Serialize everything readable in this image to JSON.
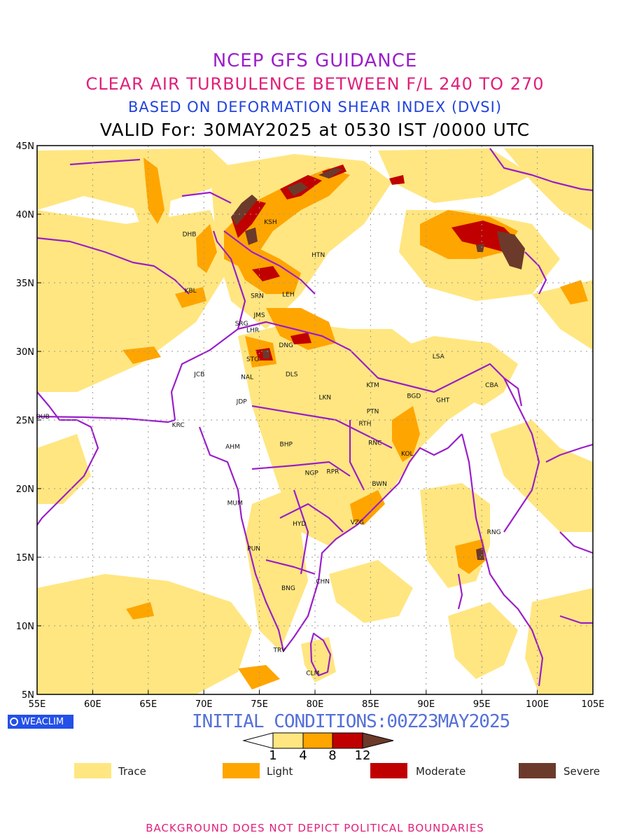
{
  "titles": {
    "line1": "NCEP GFS GUIDANCE",
    "line2": "CLEAR AIR TURBULENCE BETWEEN F/L 240 TO 270",
    "line3": "BASED ON DEFORMATION SHEAR INDEX (DVSI)",
    "line4": "VALID For: 30MAY2025 at 0530 IST /0000 UTC"
  },
  "map": {
    "lon_range": [
      55,
      105
    ],
    "lat_range": [
      5,
      45
    ],
    "grid": true,
    "lon_ticks": [
      "55E",
      "60E",
      "65E",
      "70E",
      "75E",
      "80E",
      "85E",
      "90E",
      "95E",
      "100E",
      "105E"
    ],
    "lat_ticks": [
      "45N",
      "40N",
      "35N",
      "30N",
      "25N",
      "20N",
      "15N",
      "10N",
      "5N"
    ],
    "cities": [
      {
        "code": "KSH",
        "lon": 76.0,
        "lat": 39.5
      },
      {
        "code": "DHB",
        "lon": 68.7,
        "lat": 38.6
      },
      {
        "code": "HTN",
        "lon": 80.3,
        "lat": 37.1
      },
      {
        "code": "KBL",
        "lon": 68.8,
        "lat": 34.5
      },
      {
        "code": "SRN",
        "lon": 74.8,
        "lat": 34.1
      },
      {
        "code": "LEH",
        "lon": 77.6,
        "lat": 34.2
      },
      {
        "code": "JMS",
        "lon": 75.0,
        "lat": 32.7
      },
      {
        "code": "SRG",
        "lon": 73.4,
        "lat": 32.1
      },
      {
        "code": "LHR",
        "lon": 74.4,
        "lat": 31.6
      },
      {
        "code": "DNG",
        "lon": 77.4,
        "lat": 30.5
      },
      {
        "code": "STG",
        "lon": 74.4,
        "lat": 29.5
      },
      {
        "code": "LSA",
        "lon": 91.1,
        "lat": 29.7
      },
      {
        "code": "JCB",
        "lon": 69.6,
        "lat": 28.4
      },
      {
        "code": "NAL",
        "lon": 73.9,
        "lat": 28.2
      },
      {
        "code": "DLS",
        "lon": 77.9,
        "lat": 28.4
      },
      {
        "code": "KTM",
        "lon": 85.2,
        "lat": 27.6
      },
      {
        "code": "BGD",
        "lon": 88.9,
        "lat": 26.8
      },
      {
        "code": "CBA",
        "lon": 95.9,
        "lat": 27.6
      },
      {
        "code": "GHT",
        "lon": 91.5,
        "lat": 26.5
      },
      {
        "code": "JDP",
        "lon": 73.4,
        "lat": 26.4
      },
      {
        "code": "LKN",
        "lon": 80.9,
        "lat": 26.7
      },
      {
        "code": "DUB",
        "lon": 55.5,
        "lat": 25.3
      },
      {
        "code": "PTN",
        "lon": 85.2,
        "lat": 25.7
      },
      {
        "code": "KRC",
        "lon": 67.7,
        "lat": 24.7
      },
      {
        "code": "RTH",
        "lon": 84.5,
        "lat": 24.8
      },
      {
        "code": "BHP",
        "lon": 77.4,
        "lat": 23.3
      },
      {
        "code": "RNC",
        "lon": 85.4,
        "lat": 23.4
      },
      {
        "code": "AHM",
        "lon": 72.6,
        "lat": 23.1
      },
      {
        "code": "KOL",
        "lon": 88.3,
        "lat": 22.6
      },
      {
        "code": "NGP",
        "lon": 79.7,
        "lat": 21.2
      },
      {
        "code": "RPR",
        "lon": 81.6,
        "lat": 21.3
      },
      {
        "code": "BWN",
        "lon": 85.8,
        "lat": 20.4
      },
      {
        "code": "MUM",
        "lon": 72.8,
        "lat": 19.0
      },
      {
        "code": "HYD",
        "lon": 78.6,
        "lat": 17.5
      },
      {
        "code": "VZG",
        "lon": 83.8,
        "lat": 17.6
      },
      {
        "code": "RNG",
        "lon": 96.1,
        "lat": 16.9
      },
      {
        "code": "PUN",
        "lon": 74.5,
        "lat": 15.7
      },
      {
        "code": "CHN",
        "lon": 80.7,
        "lat": 13.3
      },
      {
        "code": "BNG",
        "lon": 77.6,
        "lat": 12.8
      },
      {
        "code": "TRV",
        "lon": 76.8,
        "lat": 8.3
      },
      {
        "code": "CLM",
        "lon": 79.8,
        "lat": 6.6
      }
    ]
  },
  "brand": {
    "label": "WEACLIM"
  },
  "initial_conditions": "INITIAL CONDITIONS:00Z23MAY2025",
  "colorbar": {
    "ticks": [
      "1",
      "4",
      "8",
      "12"
    ],
    "colors": [
      "#ffe680",
      "#ffa500",
      "#c00000",
      "#6b3a2a"
    ]
  },
  "legend": [
    {
      "label": "Trace",
      "color": "#ffe680"
    },
    {
      "label": "Light",
      "color": "#ffa500"
    },
    {
      "label": "Moderate",
      "color": "#c00000"
    },
    {
      "label": "Severe",
      "color": "#6b3a2a"
    }
  ],
  "footer": "BACKGROUND DOES NOT DEPICT POLITICAL BOUNDARIES"
}
